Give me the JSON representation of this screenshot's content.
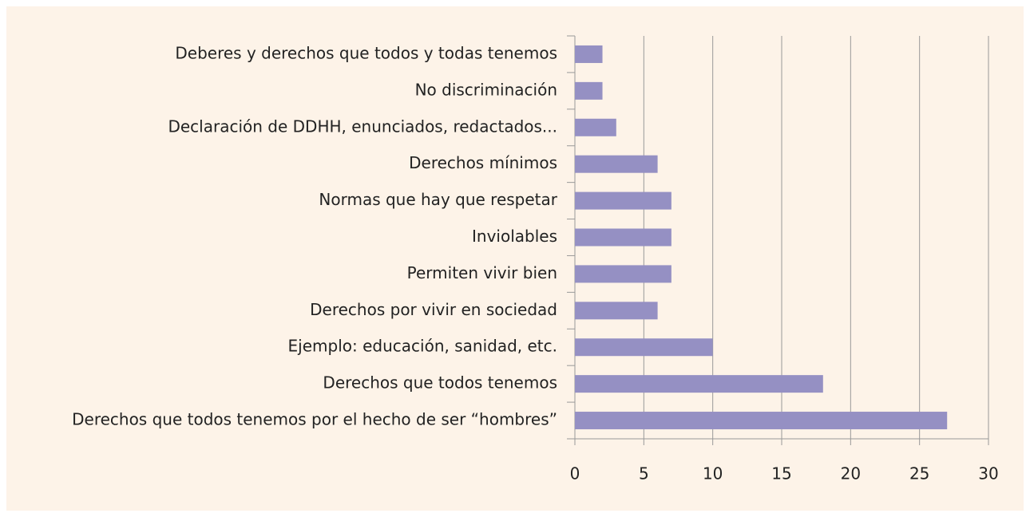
{
  "chart_data": {
    "type": "bar",
    "orientation": "horizontal",
    "categories": [
      "Deberes y derechos que todos y todas tenemos",
      "No discriminación",
      "Declaración de DDHH, enunciados, redactados...",
      "Derechos mínimos",
      "Normas que hay que respetar",
      "Inviolables",
      "Permiten vivir bien",
      "Derechos por vivir en sociedad",
      "Ejemplo: educación, sanidad, etc.",
      "Derechos que todos tenemos",
      "Derechos que todos tenemos por el hecho de ser “hombres”"
    ],
    "values": [
      2,
      2,
      3,
      6,
      7,
      7,
      7,
      6,
      10,
      18,
      27
    ],
    "color": "#9590c3",
    "xlim": [
      0,
      30
    ],
    "xticks": [
      0,
      5,
      10,
      15,
      20,
      25,
      30
    ],
    "grid": true
  }
}
